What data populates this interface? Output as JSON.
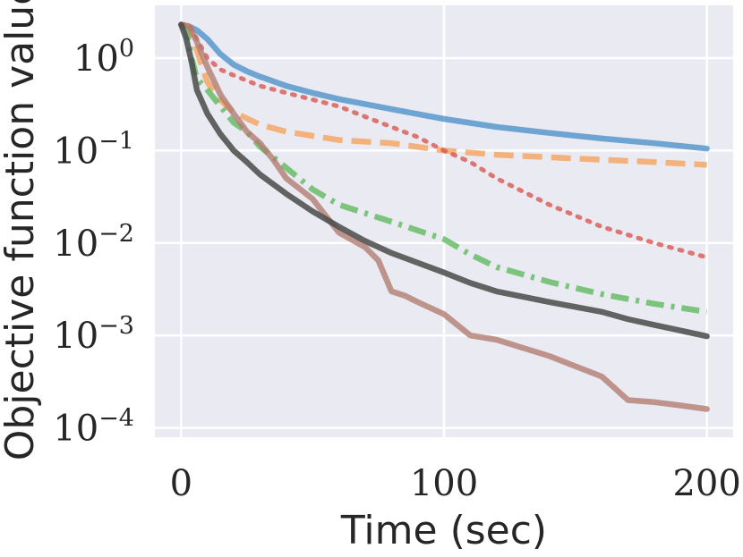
{
  "chart_data": {
    "type": "line",
    "title": "",
    "xlabel": "Time (sec)",
    "ylabel": "Objective function value",
    "xlim": [
      -10,
      210
    ],
    "ylim_log10": [
      -4.1,
      0.57
    ],
    "y_scale": "log",
    "grid": true,
    "xticks": [
      {
        "value": 0,
        "label": "0"
      },
      {
        "value": 100,
        "label": "100"
      },
      {
        "value": 200,
        "label": "200"
      }
    ],
    "yticks": [
      {
        "exp": 0,
        "base": "10",
        "sup": "0"
      },
      {
        "exp": -1,
        "base": "10",
        "sup": "−1"
      },
      {
        "exp": -2,
        "base": "10",
        "sup": "−2"
      },
      {
        "exp": -3,
        "base": "10",
        "sup": "−3"
      },
      {
        "exp": -4,
        "base": "10",
        "sup": "−4"
      }
    ],
    "series": [
      {
        "name": "blue-solid",
        "color": "#4a90c8",
        "dash": "solid",
        "x": [
          0,
          3,
          6,
          10,
          15,
          20,
          25,
          30,
          40,
          50,
          60,
          80,
          100,
          120,
          140,
          160,
          180,
          200
        ],
        "y": [
          2.3,
          2.2,
          2.0,
          1.6,
          1.1,
          0.85,
          0.72,
          0.63,
          0.5,
          0.42,
          0.36,
          0.28,
          0.22,
          0.18,
          0.155,
          0.135,
          0.12,
          0.105
        ]
      },
      {
        "name": "orange-dashed",
        "color": "#f5a05a",
        "dash": "dashed",
        "x": [
          0,
          3,
          5,
          8,
          10,
          15,
          20,
          30,
          40,
          60,
          80,
          100,
          120,
          150,
          180,
          200
        ],
        "y": [
          2.3,
          2.2,
          1.5,
          0.8,
          0.55,
          0.35,
          0.26,
          0.19,
          0.16,
          0.13,
          0.12,
          0.1,
          0.09,
          0.082,
          0.075,
          0.07
        ]
      },
      {
        "name": "red-dotted",
        "color": "#d9534f",
        "dash": "dotted",
        "x": [
          0,
          3,
          6,
          10,
          15,
          20,
          30,
          40,
          60,
          80,
          90,
          100,
          110,
          120,
          140,
          160,
          180,
          200
        ],
        "y": [
          2.3,
          2.3,
          1.6,
          1.0,
          0.75,
          0.65,
          0.5,
          0.42,
          0.3,
          0.18,
          0.14,
          0.1,
          0.075,
          0.05,
          0.026,
          0.015,
          0.01,
          0.007
        ]
      },
      {
        "name": "green-dashdot",
        "color": "#5cb85c",
        "dash": "dashdot",
        "x": [
          0,
          2,
          4,
          6,
          10,
          15,
          20,
          25,
          30,
          40,
          50,
          60,
          80,
          100,
          110,
          120,
          140,
          160,
          180,
          200
        ],
        "y": [
          2.3,
          2.0,
          1.0,
          0.6,
          0.45,
          0.3,
          0.2,
          0.16,
          0.11,
          0.065,
          0.038,
          0.026,
          0.017,
          0.011,
          0.0075,
          0.0055,
          0.0038,
          0.0028,
          0.0022,
          0.0018
        ]
      },
      {
        "name": "brown-solid",
        "color": "#b07a70",
        "dash": "solid",
        "x": [
          0,
          3,
          6,
          10,
          15,
          20,
          25,
          30,
          35,
          40,
          50,
          60,
          70,
          75,
          80,
          85,
          90,
          100,
          110,
          120,
          140,
          160,
          170,
          180,
          190,
          200
        ],
        "y": [
          2.3,
          2.2,
          1.5,
          0.8,
          0.4,
          0.25,
          0.16,
          0.12,
          0.08,
          0.05,
          0.03,
          0.013,
          0.009,
          0.0065,
          0.003,
          0.0027,
          0.0023,
          0.0017,
          0.001,
          0.0009,
          0.0006,
          0.00036,
          0.0002,
          0.00019,
          0.000175,
          0.00016
        ]
      },
      {
        "name": "black-solid",
        "color": "#4a4a4a",
        "dash": "solid",
        "x": [
          0,
          2,
          4,
          6,
          10,
          15,
          20,
          25,
          30,
          40,
          50,
          60,
          70,
          80,
          100,
          110,
          120,
          140,
          160,
          170,
          180,
          200
        ],
        "y": [
          2.3,
          1.6,
          0.9,
          0.45,
          0.25,
          0.15,
          0.1,
          0.075,
          0.055,
          0.034,
          0.022,
          0.015,
          0.0105,
          0.0078,
          0.0048,
          0.0037,
          0.003,
          0.0023,
          0.0018,
          0.0015,
          0.0013,
          0.00098
        ]
      }
    ]
  }
}
